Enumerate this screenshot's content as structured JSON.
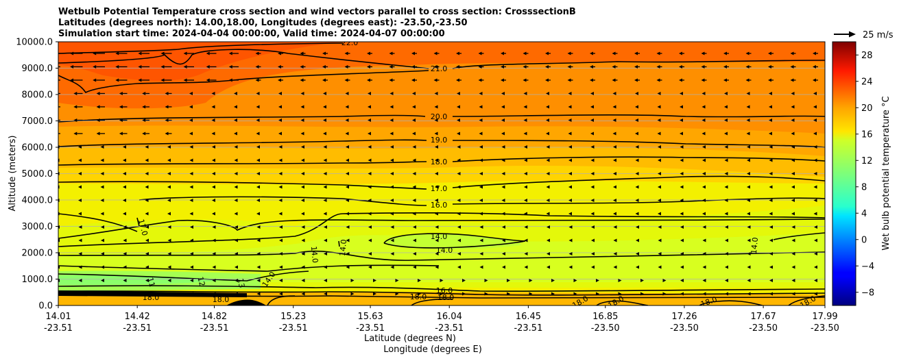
{
  "title_lines": [
    "Wetbulb Potential Temperature cross section and wind vectors parallel to cross section: CrosssectionB",
    "Latitudes (degrees north): 14.00,18.00, Longitudes (degrees east): -23.50,-23.50",
    "Simulation start time: 2024-04-04 00:00:00, Valid time: 2024-04-07 00:00:00"
  ],
  "quiver_key": {
    "label": "25 m/s"
  },
  "colorbar": {
    "label": "Wet bulb potential temperature °C",
    "range": [
      -10,
      30
    ],
    "ticks": [
      "−8",
      "−4",
      "0",
      "4",
      "8",
      "12",
      "16",
      "20",
      "24",
      "28"
    ],
    "tick_values": [
      -8,
      -4,
      0,
      4,
      8,
      12,
      16,
      20,
      24,
      28
    ],
    "colormap": "jet"
  },
  "chart_data": {
    "type": "heatmap",
    "title": "Wetbulb Potential Temperature cross section and wind vectors parallel to cross section: CrosssectionB",
    "ylabel": "Altitude (meters)",
    "xlabel": "Latitude (degrees N)",
    "xlabel2": "Longitude (degrees E)",
    "ylim": [
      0,
      10000
    ],
    "y_ticks": [
      "0.0",
      "1000.0",
      "2000.0",
      "3000.0",
      "4000.0",
      "5000.0",
      "6000.0",
      "7000.0",
      "8000.0",
      "9000.0",
      "10000.0"
    ],
    "y_tick_values": [
      0,
      1000,
      2000,
      3000,
      4000,
      5000,
      6000,
      7000,
      8000,
      9000,
      10000
    ],
    "xlim": [
      14.01,
      17.99
    ],
    "x_ticks_lat": [
      "14.01",
      "14.42",
      "14.82",
      "15.23",
      "15.63",
      "16.04",
      "16.45",
      "16.85",
      "17.26",
      "17.67",
      "17.99"
    ],
    "x_ticks_lon": [
      "-23.51",
      "-23.51",
      "-23.51",
      "-23.51",
      "-23.51",
      "-23.51",
      "-23.51",
      "-23.50",
      "-23.50",
      "-23.50",
      "-23.50"
    ],
    "x_tick_values": [
      14.01,
      14.42,
      14.82,
      15.23,
      15.63,
      16.04,
      16.45,
      16.85,
      17.26,
      17.67,
      17.99
    ],
    "grid": "horizontal",
    "contour_levels": [
      {
        "label": "22.0",
        "altitude": 9700
      },
      {
        "label": "21.0",
        "altitude": 8900
      },
      {
        "label": "20.0",
        "altitude": 7100
      },
      {
        "label": "19.0",
        "altitude": 6250
      },
      {
        "label": "18.0",
        "altitude": 5400
      },
      {
        "label": "17.0",
        "altitude": 4400
      },
      {
        "label": "16.0",
        "altitude": 3800
      },
      {
        "label": "14.0",
        "altitude": 2600
      },
      {
        "label": "14.0",
        "altitude": 2100
      },
      {
        "label": "17.0",
        "altitude": 2900
      },
      {
        "label": "14.0",
        "altitude": 2300
      },
      {
        "label": "14.0",
        "altitude": 2400
      },
      {
        "label": "14.0",
        "altitude": 2300
      },
      {
        "label": "11",
        "altitude": 900
      },
      {
        "label": "12",
        "altitude": 950
      },
      {
        "label": "13",
        "altitude": 850
      },
      {
        "label": "14.0",
        "altitude": 1000
      },
      {
        "label": "16.0",
        "altitude": 550
      },
      {
        "label": "18.0",
        "altitude": 300
      },
      {
        "label": "18.0",
        "altitude": 200
      },
      {
        "label": "18.0",
        "altitude": 300
      },
      {
        "label": "18.0",
        "altitude": 300
      },
      {
        "label": "18.0",
        "altitude": 150
      },
      {
        "label": "18.0",
        "altitude": 150
      },
      {
        "label": "18.0",
        "altitude": 150
      },
      {
        "label": "18.0",
        "altitude": 150
      }
    ]
  }
}
